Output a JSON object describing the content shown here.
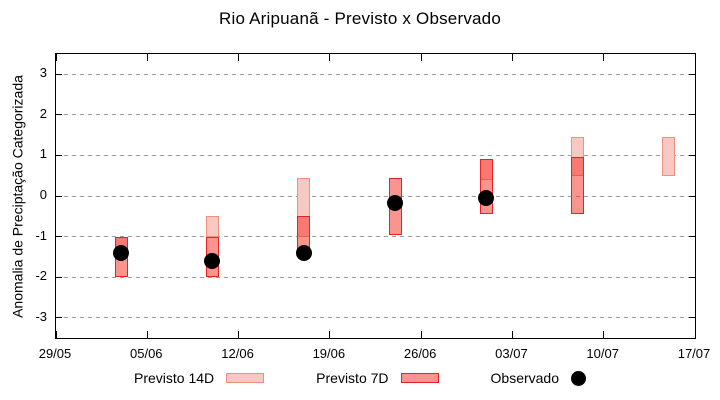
{
  "title": "Rio Aripuanã - Previsto x Observado",
  "chart_data": {
    "type": "bar",
    "subtype": "range-bars-with-scatter",
    "title": "Rio Aripuanã - Previsto x Observado",
    "xlabel": "",
    "ylabel": "Anomalia de Preciptação Categorizada",
    "ylim": [
      -3.5,
      3.5
    ],
    "y_ticks": [
      3,
      2,
      1,
      0,
      -1,
      -2,
      -3
    ],
    "grid": "horizontal dashed only",
    "legend_position": "bottom-center",
    "x_domain_days": 49,
    "x_ticks": [
      {
        "label": "29/05",
        "day": 0
      },
      {
        "label": "05/06",
        "day": 7
      },
      {
        "label": "12/06",
        "day": 14
      },
      {
        "label": "19/06",
        "day": 21
      },
      {
        "label": "26/06",
        "day": 28
      },
      {
        "label": "03/07",
        "day": 35
      },
      {
        "label": "10/07",
        "day": 42
      },
      {
        "label": "17/07",
        "day": 49
      }
    ],
    "series": [
      {
        "id": "previsto-14d",
        "name": "Previsto 14D",
        "type": "range-bar",
        "fill": "#f8c8c3",
        "border": "#f09080",
        "points": [
          {
            "day": 5,
            "hi": -1.0,
            "lo": -1.3
          },
          {
            "day": 12,
            "hi": -0.5,
            "lo": -1.0
          },
          {
            "day": 19,
            "hi": 0.45,
            "lo": -1.0
          },
          {
            "day": 33,
            "hi": 0.9,
            "lo": 0.4
          },
          {
            "day": 40,
            "hi": 1.45,
            "lo": 0.5
          },
          {
            "day": 47,
            "hi": 1.45,
            "lo": 0.5
          }
        ]
      },
      {
        "id": "previsto-7d",
        "name": "Previsto 7D",
        "type": "range-bar",
        "fill": "rgba(245,42,32,0.5)",
        "border": "#e62222",
        "points": [
          {
            "day": 5,
            "hi": -1.0,
            "lo": -2.0
          },
          {
            "day": 12,
            "hi": -1.0,
            "lo": -2.0
          },
          {
            "day": 19,
            "hi": -0.5,
            "lo": -1.4
          },
          {
            "day": 26,
            "hi": 0.45,
            "lo": -0.95
          },
          {
            "day": 33,
            "hi": 0.9,
            "lo": -0.45
          },
          {
            "day": 40,
            "hi": 0.95,
            "lo": -0.45
          }
        ]
      },
      {
        "id": "observado",
        "name": "Observado",
        "type": "scatter",
        "color": "#000000",
        "points": [
          {
            "day": 5,
            "value": -1.4
          },
          {
            "day": 12,
            "value": -1.6
          },
          {
            "day": 19,
            "value": -1.4
          },
          {
            "day": 26,
            "value": -0.18
          },
          {
            "day": 33,
            "value": -0.05
          }
        ]
      }
    ]
  },
  "legend": {
    "items": [
      {
        "label": "Previsto 14D"
      },
      {
        "label": "Previsto 7D"
      },
      {
        "label": "Observado"
      }
    ]
  },
  "colors": {
    "axis": "#000000",
    "grid": "#9e9e9e",
    "background": "#ffffff",
    "previsto_14d_fill": "#f8c8c3",
    "previsto_14d_border": "#f09080",
    "previsto_7d_fill": "#fa948f",
    "previsto_7d_border": "#e62222",
    "observado": "#000000"
  }
}
